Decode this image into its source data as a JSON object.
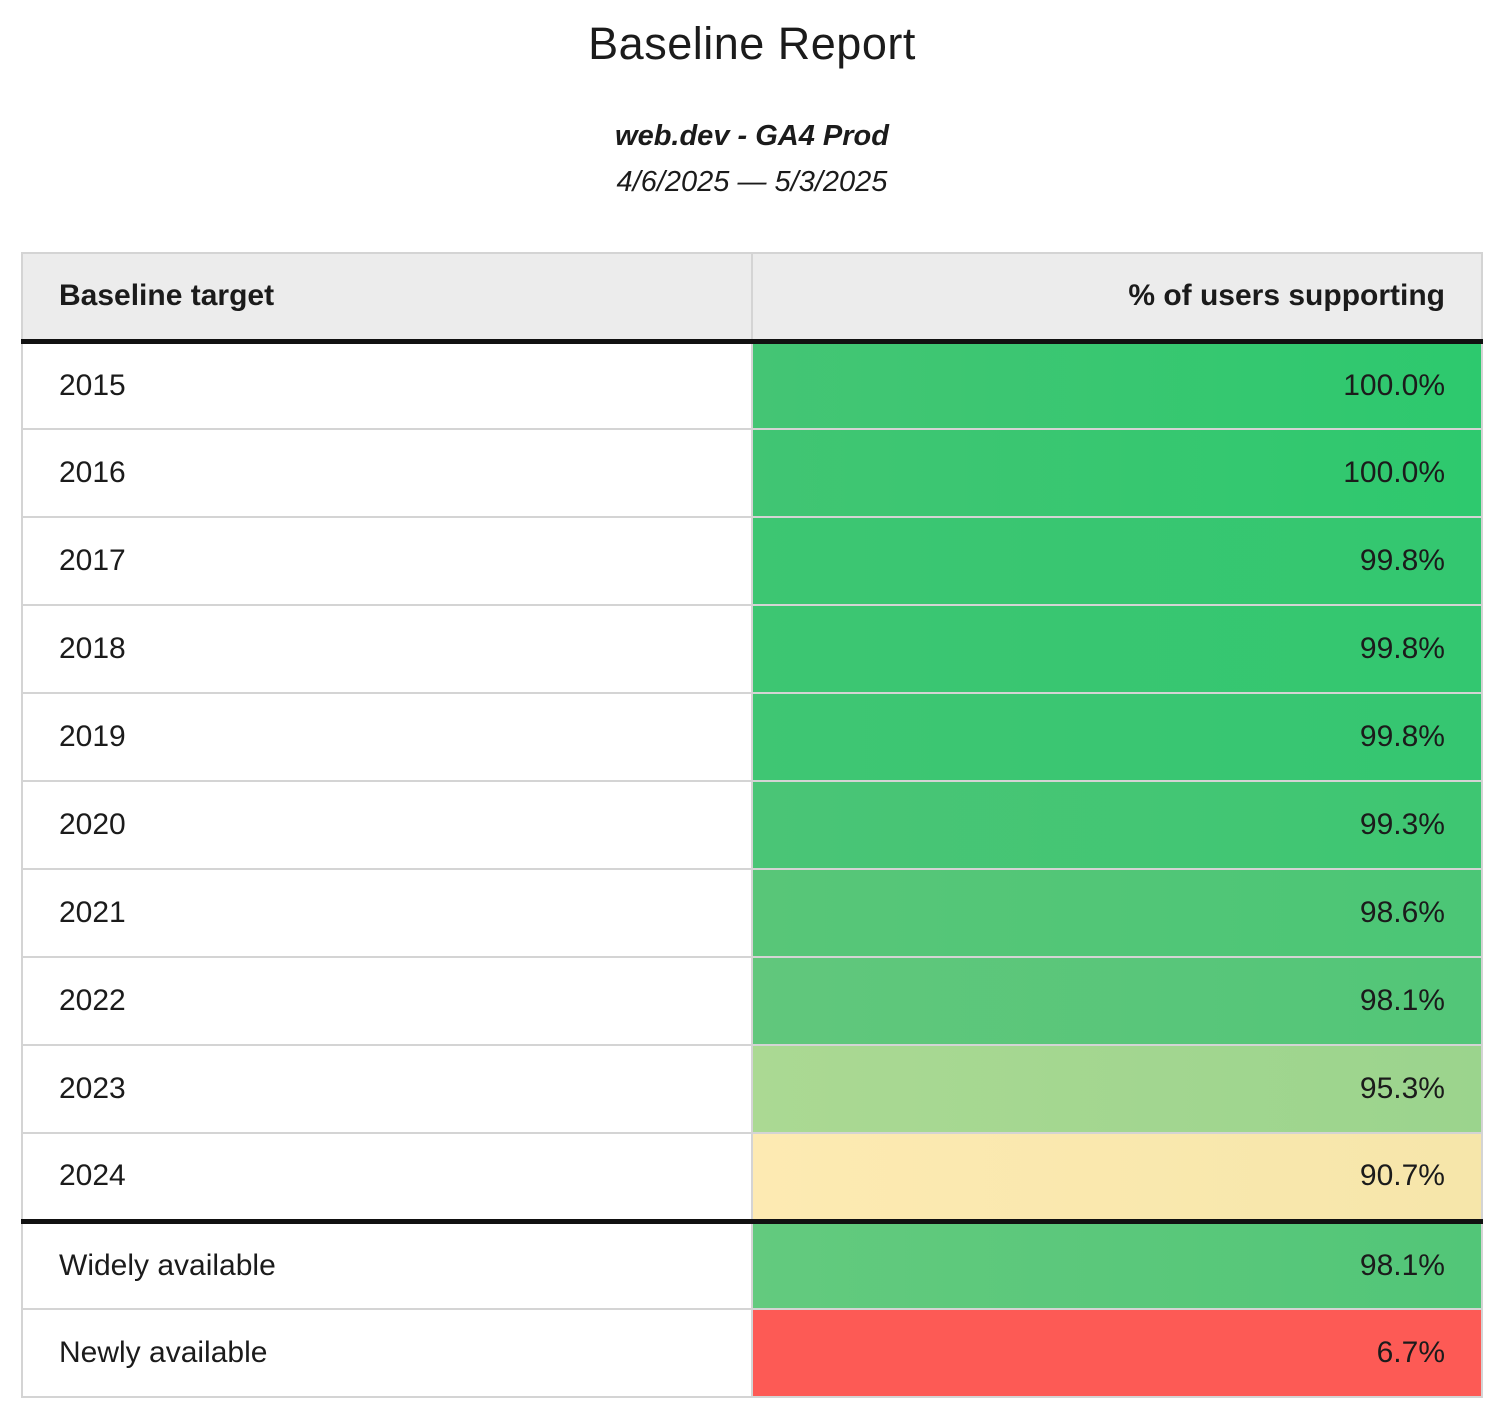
{
  "report": {
    "title": "Baseline Report",
    "subtitle": "web.dev - GA4 Prod",
    "date_range": "4/6/2025 — 5/3/2025"
  },
  "table": {
    "headers": {
      "target": "Baseline target",
      "value": "% of users supporting"
    },
    "rows": [
      {
        "target": "2015",
        "value": "100.0%",
        "bg_left": "#44c574",
        "bg_right": "#2dc96e",
        "section_start": false
      },
      {
        "target": "2016",
        "value": "100.0%",
        "bg_left": "#41c573",
        "bg_right": "#2ec96e",
        "section_start": false
      },
      {
        "target": "2017",
        "value": "99.8%",
        "bg_left": "#3dc672",
        "bg_right": "#33c770",
        "section_start": false
      },
      {
        "target": "2018",
        "value": "99.8%",
        "bg_left": "#3dc672",
        "bg_right": "#33c770",
        "section_start": false
      },
      {
        "target": "2019",
        "value": "99.8%",
        "bg_left": "#3fc673",
        "bg_right": "#35c671",
        "section_start": false
      },
      {
        "target": "2020",
        "value": "99.3%",
        "bg_left": "#4ac576",
        "bg_right": "#3ec672",
        "section_start": false
      },
      {
        "target": "2021",
        "value": "98.6%",
        "bg_left": "#58c678",
        "bg_right": "#4bc676",
        "section_start": false
      },
      {
        "target": "2022",
        "value": "98.1%",
        "bg_left": "#61c77c",
        "bg_right": "#52c678",
        "section_start": false
      },
      {
        "target": "2023",
        "value": "95.3%",
        "bg_left": "#abd993",
        "bg_right": "#9bd48d",
        "section_start": false
      },
      {
        "target": "2024",
        "value": "90.7%",
        "bg_left": "#fdeab2",
        "bg_right": "#f6e6aa",
        "section_start": false
      },
      {
        "target": "Widely available",
        "value": "98.1%",
        "bg_left": "#63ca7e",
        "bg_right": "#52c678",
        "section_start": true
      },
      {
        "target": "Newly available",
        "value": "6.7%",
        "bg_left": "#fd5a55",
        "bg_right": "#fd5a55",
        "section_start": false
      }
    ]
  },
  "colors": {
    "header_bg": "#ececec",
    "row_border": "#d4d4d4",
    "section_border": "#111111",
    "text": "#1b1b1b"
  }
}
